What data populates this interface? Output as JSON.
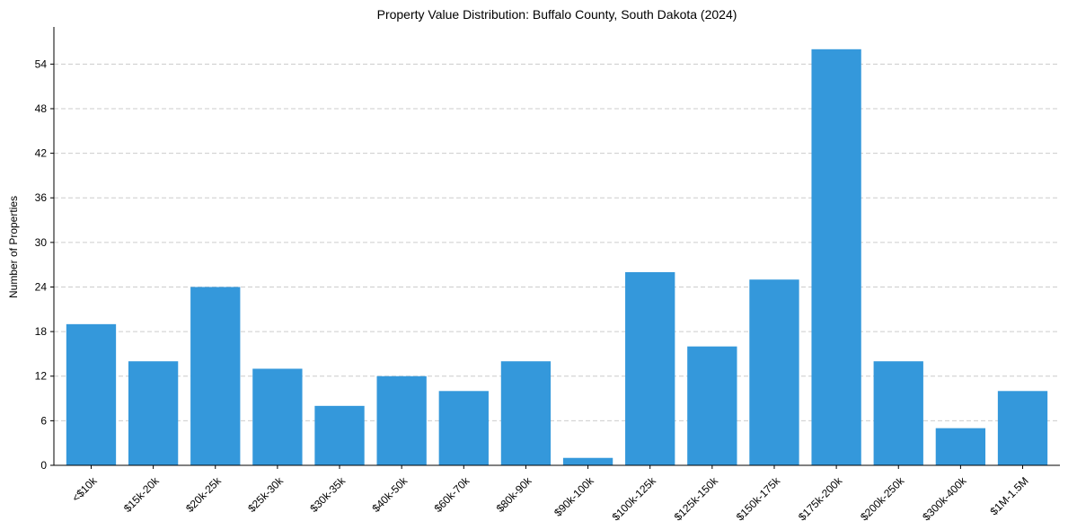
{
  "chart_data": {
    "type": "bar",
    "title": "Property Value Distribution: Buffalo County, South Dakota (2024)",
    "xlabel": "",
    "ylabel": "Number of Properties",
    "categories": [
      "<$10k",
      "$15k-20k",
      "$20k-25k",
      "$25k-30k",
      "$30k-35k",
      "$40k-50k",
      "$60k-70k",
      "$80k-90k",
      "$90k-100k",
      "$100k-125k",
      "$125k-150k",
      "$150k-175k",
      "$175k-200k",
      "$200k-250k",
      "$300k-400k",
      "$1M-1.5M"
    ],
    "values": [
      19,
      14,
      24,
      13,
      8,
      12,
      10,
      14,
      1,
      26,
      16,
      25,
      56,
      14,
      5,
      10
    ],
    "yticks": [
      0,
      6,
      12,
      18,
      24,
      30,
      36,
      42,
      48,
      54
    ],
    "ylim": [
      0,
      59
    ],
    "grid": true,
    "bar_color": "#3498db",
    "grid_color": "#cccccc",
    "axis_color": "#000000"
  }
}
